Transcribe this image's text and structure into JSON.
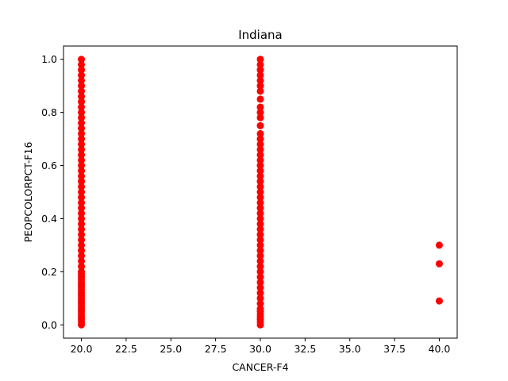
{
  "chart_data": {
    "type": "scatter",
    "title": "Indiana",
    "xlabel": "CANCER-F4",
    "ylabel": "PEOPCOLORPCT-F16",
    "xlim": [
      19.0,
      41.0
    ],
    "ylim": [
      -0.05,
      1.05
    ],
    "xticks": [
      "20.0",
      "22.5",
      "25.0",
      "27.5",
      "30.0",
      "32.5",
      "35.0",
      "37.5",
      "40.0"
    ],
    "yticks": [
      "0.0",
      "0.2",
      "0.4",
      "0.6",
      "0.8",
      "1.0"
    ],
    "grid": false,
    "legend": "none",
    "series": [
      {
        "color": "#ff0000",
        "points": [
          [
            20,
            0.0
          ],
          [
            20,
            0.01
          ],
          [
            20,
            0.02
          ],
          [
            20,
            0.03
          ],
          [
            20,
            0.04
          ],
          [
            20,
            0.05
          ],
          [
            20,
            0.06
          ],
          [
            20,
            0.07
          ],
          [
            20,
            0.08
          ],
          [
            20,
            0.09
          ],
          [
            20,
            0.1
          ],
          [
            20,
            0.11
          ],
          [
            20,
            0.12
          ],
          [
            20,
            0.13
          ],
          [
            20,
            0.14
          ],
          [
            20,
            0.15
          ],
          [
            20,
            0.16
          ],
          [
            20,
            0.17
          ],
          [
            20,
            0.18
          ],
          [
            20,
            0.19
          ],
          [
            20,
            0.2
          ],
          [
            20,
            0.22
          ],
          [
            20,
            0.24
          ],
          [
            20,
            0.26
          ],
          [
            20,
            0.28
          ],
          [
            20,
            0.3
          ],
          [
            20,
            0.32
          ],
          [
            20,
            0.34
          ],
          [
            20,
            0.36
          ],
          [
            20,
            0.38
          ],
          [
            20,
            0.4
          ],
          [
            20,
            0.42
          ],
          [
            20,
            0.44
          ],
          [
            20,
            0.46
          ],
          [
            20,
            0.48
          ],
          [
            20,
            0.5
          ],
          [
            20,
            0.52
          ],
          [
            20,
            0.54
          ],
          [
            20,
            0.56
          ],
          [
            20,
            0.58
          ],
          [
            20,
            0.6
          ],
          [
            20,
            0.62
          ],
          [
            20,
            0.64
          ],
          [
            20,
            0.66
          ],
          [
            20,
            0.68
          ],
          [
            20,
            0.7
          ],
          [
            20,
            0.72
          ],
          [
            20,
            0.74
          ],
          [
            20,
            0.76
          ],
          [
            20,
            0.78
          ],
          [
            20,
            0.8
          ],
          [
            20,
            0.82
          ],
          [
            20,
            0.84
          ],
          [
            20,
            0.86
          ],
          [
            20,
            0.88
          ],
          [
            20,
            0.9
          ],
          [
            20,
            0.92
          ],
          [
            20,
            0.94
          ],
          [
            20,
            0.96
          ],
          [
            20,
            0.98
          ],
          [
            20,
            1.0
          ],
          [
            30,
            0.0
          ],
          [
            30,
            0.01
          ],
          [
            30,
            0.02
          ],
          [
            30,
            0.03
          ],
          [
            30,
            0.04
          ],
          [
            30,
            0.05
          ],
          [
            30,
            0.06
          ],
          [
            30,
            0.08
          ],
          [
            30,
            0.1
          ],
          [
            30,
            0.12
          ],
          [
            30,
            0.14
          ],
          [
            30,
            0.16
          ],
          [
            30,
            0.18
          ],
          [
            30,
            0.2
          ],
          [
            30,
            0.22
          ],
          [
            30,
            0.24
          ],
          [
            30,
            0.26
          ],
          [
            30,
            0.28
          ],
          [
            30,
            0.3
          ],
          [
            30,
            0.32
          ],
          [
            30,
            0.34
          ],
          [
            30,
            0.36
          ],
          [
            30,
            0.38
          ],
          [
            30,
            0.4
          ],
          [
            30,
            0.42
          ],
          [
            30,
            0.44
          ],
          [
            30,
            0.46
          ],
          [
            30,
            0.48
          ],
          [
            30,
            0.5
          ],
          [
            30,
            0.52
          ],
          [
            30,
            0.54
          ],
          [
            30,
            0.56
          ],
          [
            30,
            0.58
          ],
          [
            30,
            0.6
          ],
          [
            30,
            0.62
          ],
          [
            30,
            0.64
          ],
          [
            30,
            0.66
          ],
          [
            30,
            0.68
          ],
          [
            30,
            0.7
          ],
          [
            30,
            0.72
          ],
          [
            30,
            0.75
          ],
          [
            30,
            0.78
          ],
          [
            30,
            0.8
          ],
          [
            30,
            0.82
          ],
          [
            30,
            0.85
          ],
          [
            30,
            0.88
          ],
          [
            30,
            0.9
          ],
          [
            30,
            0.92
          ],
          [
            30,
            0.94
          ],
          [
            30,
            0.96
          ],
          [
            30,
            0.98
          ],
          [
            30,
            1.0
          ],
          [
            40,
            0.09
          ],
          [
            40,
            0.23
          ],
          [
            40,
            0.3
          ]
        ]
      }
    ]
  }
}
